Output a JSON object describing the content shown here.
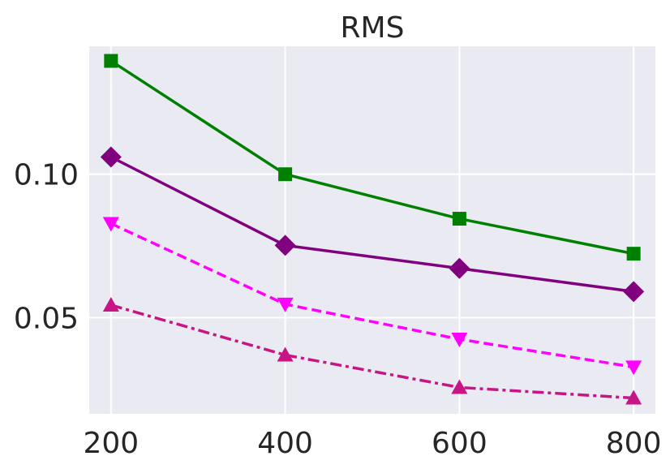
{
  "chart_data": {
    "type": "line",
    "title": "RMS",
    "xlabel": "",
    "ylabel": "",
    "x": [
      200,
      400,
      600,
      800
    ],
    "xlim": [
      175,
      825
    ],
    "ylim": [
      0.0165,
      0.1446
    ],
    "xticks": [
      200,
      400,
      600,
      800
    ],
    "xtick_labels": [
      "200",
      "400",
      "600",
      "800"
    ],
    "yticks": [
      0.05,
      0.1
    ],
    "ytick_labels": [
      "0.05",
      "0.10"
    ],
    "grid": true,
    "legend": "none",
    "background": "#EAEAF2",
    "series": [
      {
        "values": [
          0.1395,
          0.1,
          0.0845,
          0.0723
        ],
        "color": "#008000",
        "dash": "solid",
        "marker": "square"
      },
      {
        "values": [
          0.106,
          0.0752,
          0.0672,
          0.0591
        ],
        "color": "#800080",
        "dash": "solid",
        "marker": "diamond"
      },
      {
        "values": [
          0.0828,
          0.0547,
          0.0425,
          0.0328
        ],
        "color": "#FF00FF",
        "dash": "dashed",
        "marker": "triangle-down"
      },
      {
        "values": [
          0.0544,
          0.037,
          0.0257,
          0.022
        ],
        "color": "#C71585",
        "dash": "dashdot",
        "marker": "triangle-up"
      }
    ]
  }
}
